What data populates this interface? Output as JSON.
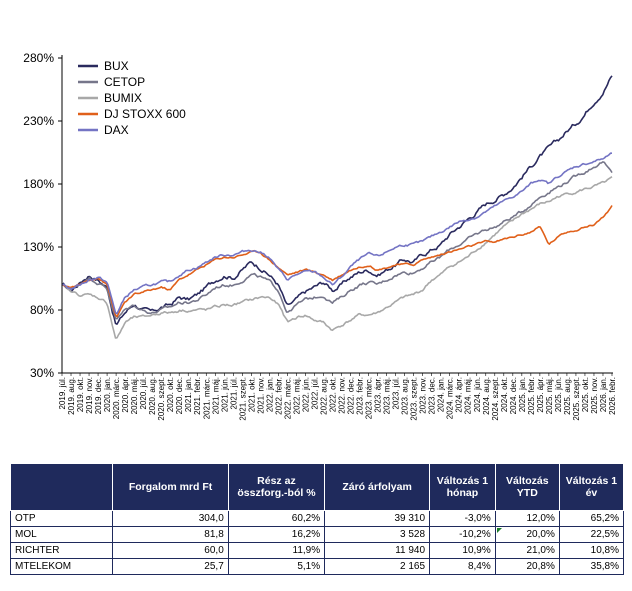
{
  "chart_data": {
    "type": "line",
    "y_ticks": [
      "280%",
      "230%",
      "180%",
      "130%",
      "80%",
      "30%"
    ],
    "y_tick_values": [
      280,
      230,
      180,
      130,
      80,
      30
    ],
    "ylim": [
      30,
      280
    ],
    "grid": false,
    "legend_position": "top-left",
    "x_tick_labels": [
      "2019. júl.",
      "2019. aug.",
      "2019. okt.",
      "2019. nov.",
      "2019. dec.",
      "2020. jan.",
      "2020. márc.",
      "2020. ápr.",
      "2020. máj.",
      "2020. júl.",
      "2020. aug.",
      "2020. szept.",
      "2020. okt.",
      "2020. dec.",
      "2021. jan.",
      "2021. febr.",
      "2021. márc.",
      "2021. máj.",
      "2021. jún.",
      "2021. júl.",
      "2021. szept.",
      "2021. okt.",
      "2021. nov.",
      "2022. jan.",
      "2022. febr.",
      "2022. márc.",
      "2022. máj.",
      "2022. jún.",
      "2022. júl.",
      "2022. aug.",
      "2022. okt.",
      "2022. nov.",
      "2022. dec.",
      "2023. febr.",
      "2023. márc.",
      "2023. ápr.",
      "2023. máj.",
      "2023. júl.",
      "2023. aug.",
      "2023. szept.",
      "2023. nov.",
      "2023. dec.",
      "2024. jan.",
      "2024. márc.",
      "2024. ápr.",
      "2024. máj.",
      "2024. jún.",
      "2024. aug.",
      "2024. szept.",
      "2024. okt.",
      "2024. dec.",
      "2025. jan.",
      "2025. febr.",
      "2025. ápr.",
      "2025. máj.",
      "2025. jún.",
      "2025. aug.",
      "2025. szept.",
      "2025. okt.",
      "2025. nov.",
      "2026. jan.",
      "2026. febr."
    ],
    "series": [
      {
        "name": "BUX",
        "color": "#2a2a5e",
        "values": [
          100,
          95,
          102,
          108,
          104,
          98,
          68,
          78,
          85,
          80,
          78,
          82,
          84,
          90,
          88,
          92,
          98,
          104,
          108,
          106,
          112,
          118,
          114,
          108,
          100,
          82,
          88,
          94,
          98,
          102,
          96,
          100,
          106,
          110,
          112,
          108,
          112,
          116,
          120,
          118,
          124,
          128,
          132,
          140,
          146,
          152,
          158,
          164,
          168,
          172,
          178,
          186,
          194,
          202,
          208,
          214,
          222,
          228,
          236,
          246,
          254,
          266
        ],
        "noise": 2.8
      },
      {
        "name": "CETOP",
        "color": "#76768a",
        "values": [
          100,
          96,
          101,
          106,
          102,
          97,
          72,
          80,
          84,
          80,
          78,
          80,
          82,
          86,
          86,
          88,
          92,
          98,
          100,
          100,
          104,
          108,
          106,
          102,
          96,
          78,
          84,
          88,
          90,
          92,
          86,
          90,
          96,
          100,
          102,
          100,
          104,
          108,
          110,
          110,
          114,
          118,
          122,
          128,
          132,
          136,
          140,
          144,
          146,
          150,
          154,
          158,
          164,
          170,
          174,
          178,
          182,
          186,
          190,
          194,
          198,
          188
        ],
        "noise": 2.0
      },
      {
        "name": "BUMIX",
        "color": "#a8a8a8",
        "values": [
          100,
          94,
          92,
          92,
          90,
          86,
          56,
          70,
          74,
          74,
          76,
          78,
          78,
          80,
          80,
          80,
          80,
          82,
          84,
          84,
          86,
          88,
          90,
          90,
          84,
          70,
          74,
          76,
          72,
          70,
          64,
          68,
          72,
          76,
          76,
          78,
          82,
          86,
          90,
          92,
          96,
          104,
          108,
          114,
          118,
          122,
          128,
          134,
          140,
          146,
          150,
          156,
          160,
          164,
          166,
          170,
          172,
          174,
          176,
          178,
          180,
          184
        ],
        "noise": 1.8
      },
      {
        "name": "DJ STOXX 600",
        "color": "#e0601a",
        "values": [
          100,
          98,
          100,
          104,
          106,
          100,
          74,
          86,
          92,
          94,
          96,
          98,
          96,
          104,
          108,
          112,
          116,
          120,
          122,
          122,
          124,
          126,
          126,
          120,
          114,
          108,
          110,
          112,
          110,
          108,
          104,
          108,
          112,
          114,
          116,
          112,
          114,
          116,
          116,
          116,
          120,
          122,
          124,
          126,
          128,
          130,
          132,
          134,
          134,
          136,
          138,
          140,
          142,
          146,
          132,
          138,
          142,
          144,
          146,
          148,
          154,
          162
        ],
        "noise": 1.2
      },
      {
        "name": "DAX",
        "color": "#7474c4",
        "values": [
          100,
          97,
          100,
          104,
          106,
          102,
          76,
          90,
          96,
          98,
          100,
          102,
          102,
          108,
          112,
          114,
          118,
          122,
          124,
          124,
          126,
          128,
          126,
          122,
          112,
          104,
          108,
          110,
          110,
          106,
          100,
          106,
          114,
          120,
          124,
          122,
          126,
          130,
          132,
          132,
          134,
          138,
          142,
          146,
          150,
          152,
          154,
          158,
          162,
          166,
          170,
          174,
          180,
          184,
          180,
          186,
          190,
          194,
          196,
          198,
          200,
          204
        ],
        "noise": 1.6
      }
    ]
  },
  "table": {
    "headers": [
      "",
      "Forgalom mrd Ft",
      "Rész az összforg.-ból %",
      "Záró árfolyam",
      "Változás 1 hónap",
      "Változás YTD",
      "Változás 1 év"
    ],
    "rows": [
      {
        "name": "OTP",
        "turnover": "304,0",
        "share": "60,2%",
        "close": "39 310",
        "m1": "-3,0%",
        "ytd": "12,0%",
        "y1": "65,2%"
      },
      {
        "name": "MOL",
        "turnover": "81,8",
        "share": "16,2%",
        "close": "3 528",
        "m1": "-10,2%",
        "ytd": "20,0%",
        "y1": "22,5%"
      },
      {
        "name": "RICHTER",
        "turnover": "60,0",
        "share": "11,9%",
        "close": "11 940",
        "m1": "10,9%",
        "ytd": "21,0%",
        "y1": "10,8%"
      },
      {
        "name": "MTELEKOM",
        "turnover": "25,7",
        "share": "5,1%",
        "close": "2 165",
        "m1": "8,4%",
        "ytd": "20,8%",
        "y1": "35,8%"
      }
    ]
  }
}
